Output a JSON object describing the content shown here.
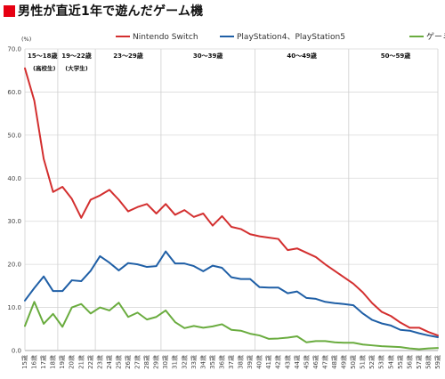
{
  "header": {
    "title": "男性が直近1年で遊んだゲーム機"
  },
  "colors": {
    "title_square": "#e60012"
  },
  "chart_data": {
    "type": "line",
    "unit_label": "(%)",
    "ylim": [
      0,
      70
    ],
    "yticks": [
      "0.0",
      "10.0",
      "20.0",
      "30.0",
      "40.0",
      "50.0",
      "60.0",
      "70.0"
    ],
    "x": [
      "15歳",
      "16歳",
      "17歳",
      "18歳",
      "19歳",
      "20歳",
      "21歳",
      "22歳",
      "23歳",
      "24歳",
      "25歳",
      "26歳",
      "27歳",
      "28歳",
      "29歳",
      "30歳",
      "31歳",
      "32歳",
      "33歳",
      "34歳",
      "35歳",
      "36歳",
      "37歳",
      "38歳",
      "39歳",
      "40歳",
      "41歳",
      "42歳",
      "43歳",
      "44歳",
      "45歳",
      "46歳",
      "47歳",
      "48歳",
      "49歳",
      "50歳",
      "51歳",
      "52歳",
      "53歳",
      "54歳",
      "55歳",
      "56歳",
      "57歳",
      "58歳",
      "59歳"
    ],
    "grid": true,
    "legend_position": "top",
    "series": [
      {
        "name": "Nintendo Switch",
        "color": "#d32f2f",
        "values": [
          65.5,
          58.0,
          44.5,
          36.8,
          38.0,
          35.2,
          30.8,
          35.0,
          36.0,
          37.3,
          35.0,
          32.3,
          33.3,
          34.0,
          31.8,
          34.0,
          31.5,
          32.6,
          31.0,
          31.8,
          29.0,
          31.2,
          28.7,
          28.2,
          27.0,
          26.5,
          26.2,
          25.9,
          23.3,
          23.7,
          22.7,
          21.7,
          20.0,
          18.5,
          17.0,
          15.5,
          13.5,
          11.0,
          9.0,
          8.0,
          6.5,
          5.3,
          5.3,
          4.3,
          3.5
        ]
      },
      {
        "name": "PlayStation4、PlayStation5",
        "color": "#1f5fa6",
        "values": [
          11.6,
          14.5,
          17.2,
          13.8,
          13.8,
          16.3,
          16.1,
          18.5,
          21.9,
          20.4,
          18.6,
          20.3,
          20.0,
          19.4,
          19.6,
          23.0,
          20.2,
          20.2,
          19.6,
          18.4,
          19.7,
          19.2,
          17.0,
          16.6,
          16.6,
          14.7,
          14.6,
          14.6,
          13.3,
          13.7,
          12.2,
          12.0,
          11.3,
          11.0,
          10.8,
          10.5,
          8.6,
          7.1,
          6.3,
          5.8,
          4.8,
          4.6,
          4.0,
          3.5,
          3.1
        ]
      },
      {
        "name": "ゲーミングPC",
        "color": "#6aac3f",
        "values": [
          5.7,
          11.3,
          6.2,
          8.5,
          5.5,
          10.0,
          10.8,
          8.6,
          10.0,
          9.3,
          11.1,
          7.8,
          8.8,
          7.2,
          7.8,
          9.3,
          6.6,
          5.2,
          5.7,
          5.3,
          5.6,
          6.1,
          4.8,
          4.6,
          3.9,
          3.5,
          2.7,
          2.8,
          3.0,
          3.3,
          1.9,
          2.2,
          2.2,
          1.9,
          1.8,
          1.8,
          1.4,
          1.2,
          1.0,
          0.9,
          0.8,
          0.5,
          0.3,
          0.5,
          0.6
        ]
      }
    ],
    "age_bands": [
      {
        "label": "15～18歳",
        "sublabel": "(高校生)",
        "start": 0,
        "end": 3
      },
      {
        "label": "19～22歳",
        "sublabel": "(大学生)",
        "start": 4,
        "end": 7
      },
      {
        "label": "23～29歳",
        "sublabel": "",
        "start": 8,
        "end": 14
      },
      {
        "label": "30～39歳",
        "sublabel": "",
        "start": 15,
        "end": 24
      },
      {
        "label": "40～49歳",
        "sublabel": "",
        "start": 25,
        "end": 34
      },
      {
        "label": "50～59歳",
        "sublabel": "",
        "start": 35,
        "end": 44
      }
    ]
  }
}
